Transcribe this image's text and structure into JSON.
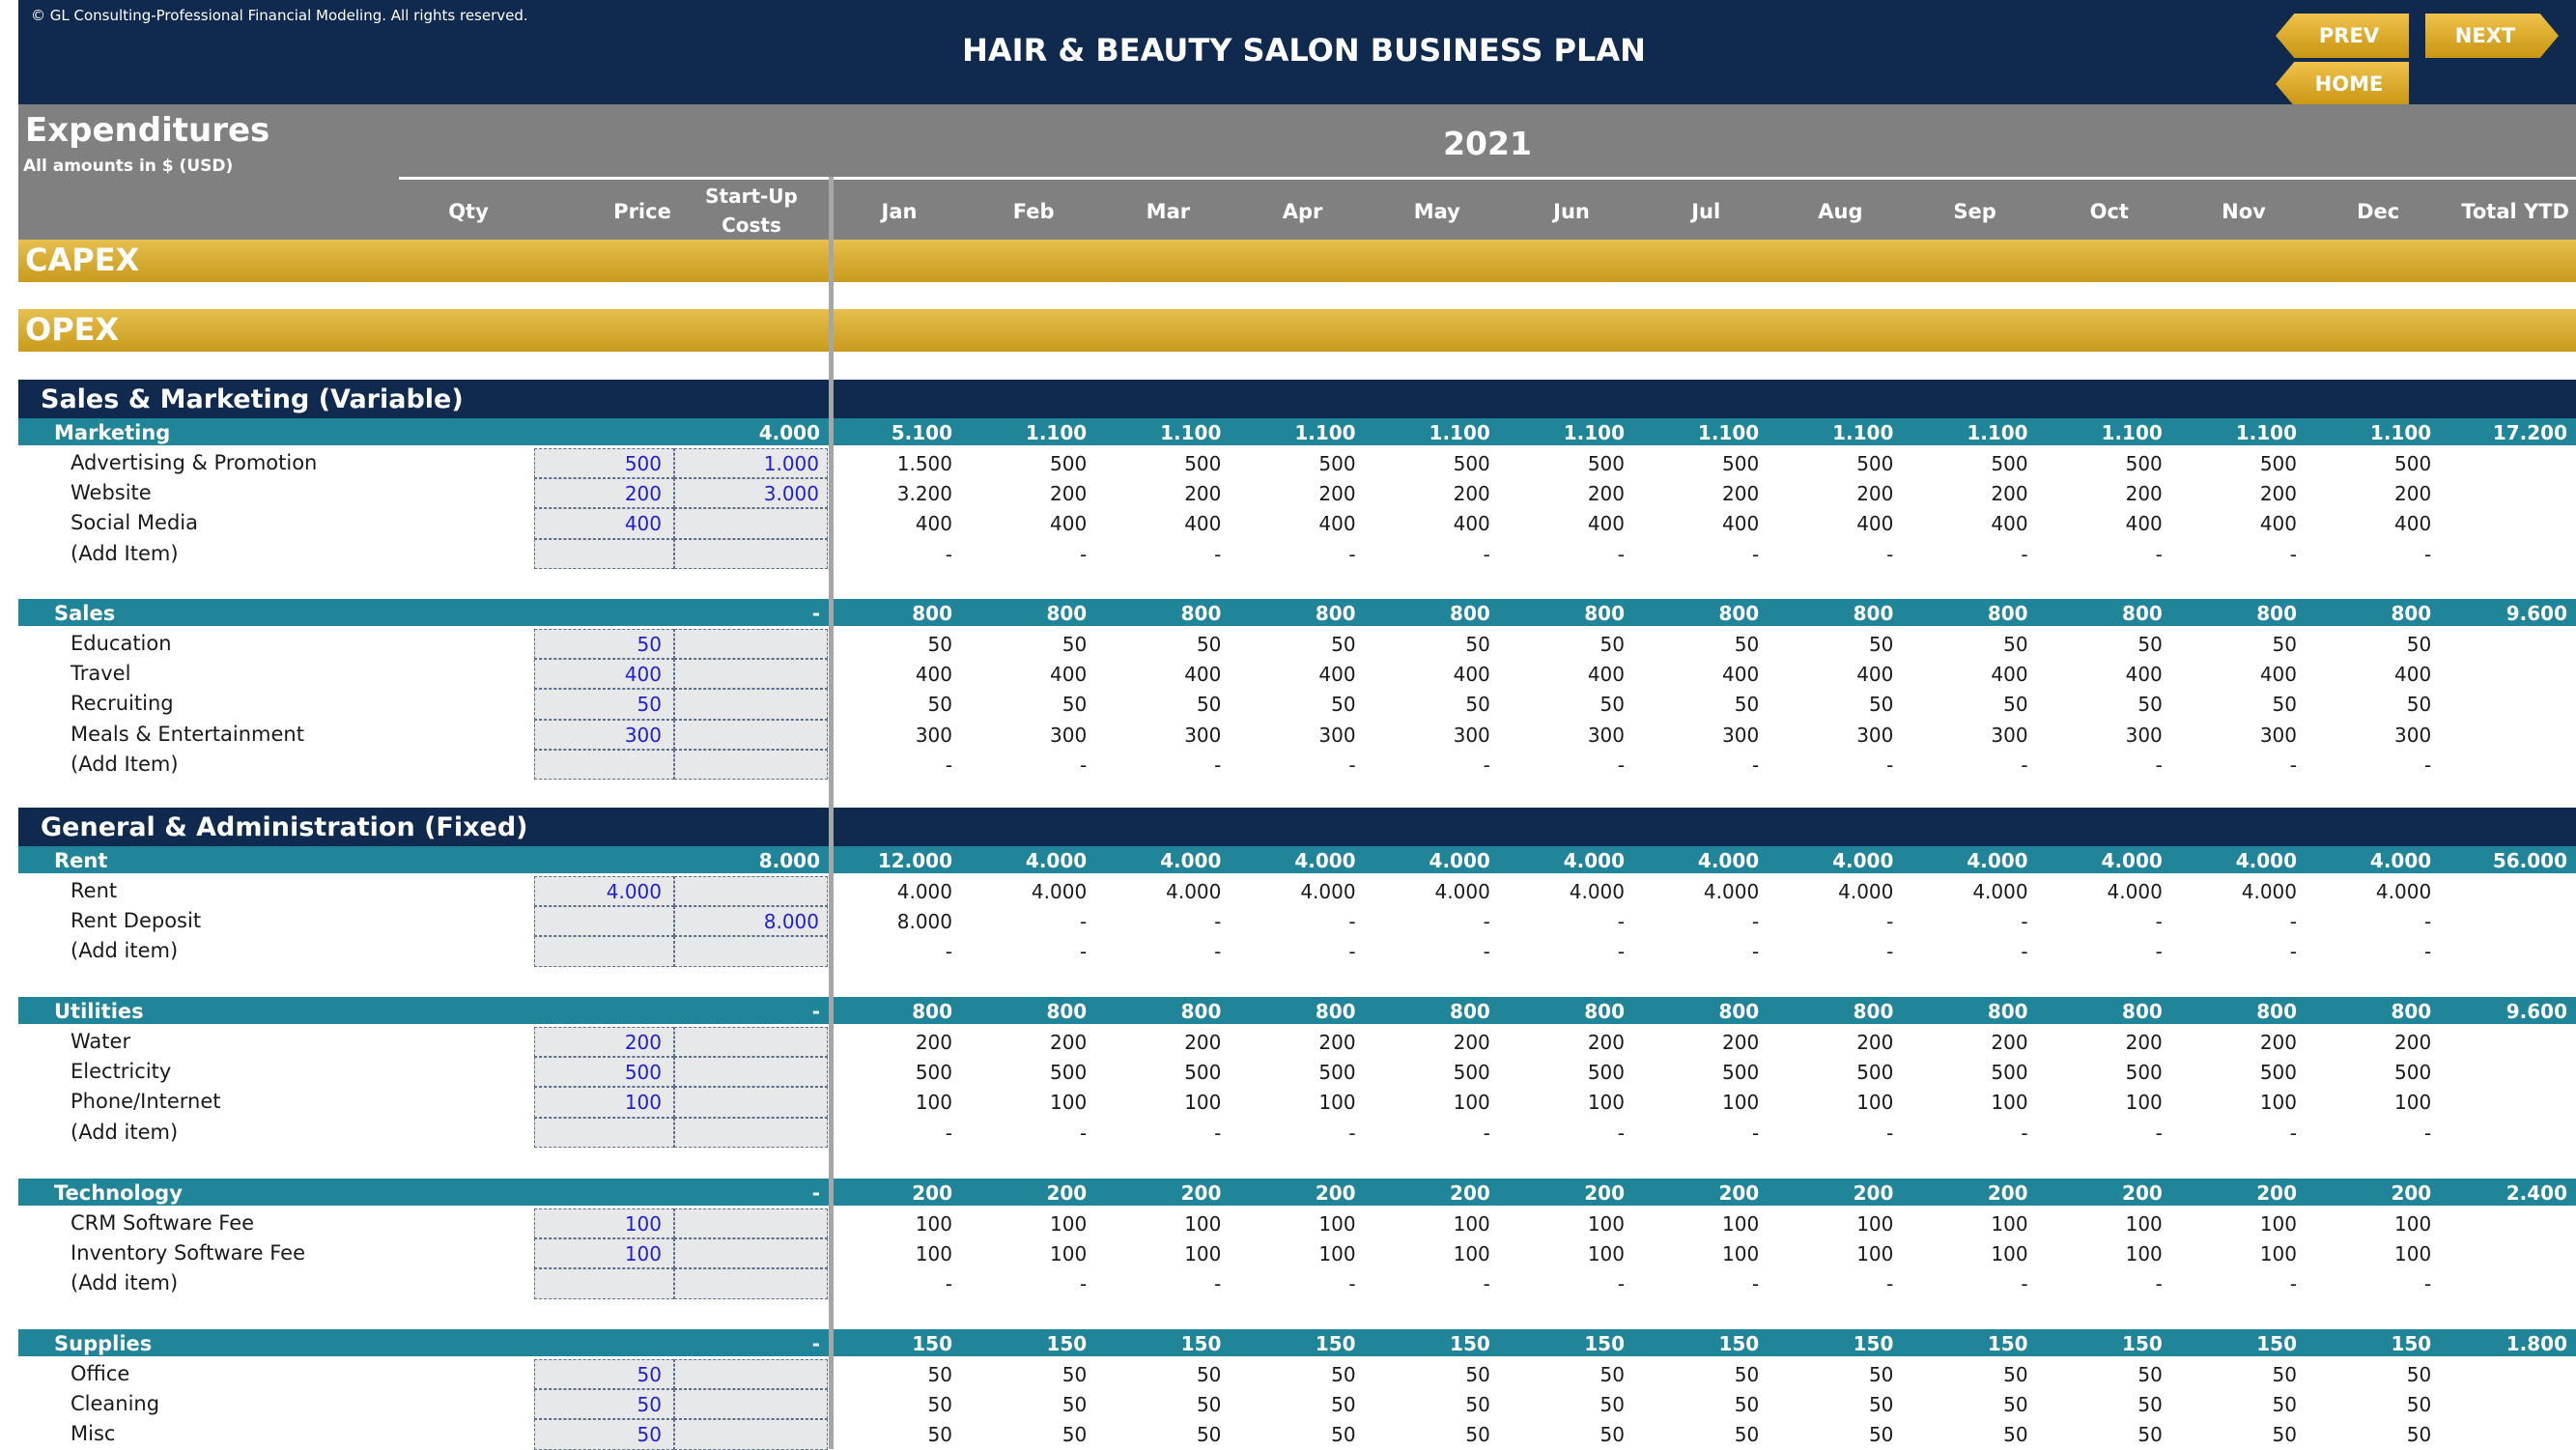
{
  "header": {
    "copyright": "© GL Consulting-Professional Financial Modeling. All rights reserved.",
    "title": "HAIR & BEAUTY SALON BUSINESS PLAN",
    "buttons": {
      "prev": "PREV",
      "next": "NEXT",
      "home": "HOME"
    }
  },
  "sheet": {
    "title": "Expenditures",
    "subtitle": "All amounts in $ (USD)",
    "year": "2021",
    "columns": {
      "qty": "Qty",
      "price": "Price",
      "startup_l1": "Start-Up",
      "startup_l2": "Costs",
      "months": [
        "Jan",
        "Feb",
        "Mar",
        "Apr",
        "May",
        "Jun",
        "Jul",
        "Aug",
        "Sep",
        "Oct",
        "Nov",
        "Dec"
      ],
      "total": "Total YTD"
    },
    "capex_label": "CAPEX",
    "opex_label": "OPEX"
  },
  "colors": {
    "navy": "#10294f",
    "teal": "#21859a",
    "gold": "#d8a92c",
    "grey": "#808080",
    "input_blue": "#1f1fd2"
  },
  "sections": [
    {
      "title": "Sales & Marketing (Variable)",
      "groups": [
        {
          "name": "Marketing",
          "startup": "4.000",
          "months": [
            "5.100",
            "1.100",
            "1.100",
            "1.100",
            "1.100",
            "1.100",
            "1.100",
            "1.100",
            "1.100",
            "1.100",
            "1.100",
            "1.100"
          ],
          "total": "17.200",
          "items": [
            {
              "label": "Advertising & Promotion",
              "price": "500",
              "startup": "1.000",
              "months": [
                "1.500",
                "500",
                "500",
                "500",
                "500",
                "500",
                "500",
                "500",
                "500",
                "500",
                "500",
                "500"
              ]
            },
            {
              "label": "Website",
              "price": "200",
              "startup": "3.000",
              "months": [
                "3.200",
                "200",
                "200",
                "200",
                "200",
                "200",
                "200",
                "200",
                "200",
                "200",
                "200",
                "200"
              ]
            },
            {
              "label": "Social Media",
              "price": "400",
              "startup": "",
              "months": [
                "400",
                "400",
                "400",
                "400",
                "400",
                "400",
                "400",
                "400",
                "400",
                "400",
                "400",
                "400"
              ]
            },
            {
              "label": "(Add Item)",
              "price": "",
              "startup": "",
              "months": [
                "-",
                "-",
                "-",
                "-",
                "-",
                "-",
                "-",
                "-",
                "-",
                "-",
                "-",
                "-"
              ]
            }
          ]
        },
        {
          "name": "Sales",
          "startup": "-",
          "months": [
            "800",
            "800",
            "800",
            "800",
            "800",
            "800",
            "800",
            "800",
            "800",
            "800",
            "800",
            "800"
          ],
          "total": "9.600",
          "items": [
            {
              "label": "Education",
              "price": "50",
              "startup": "",
              "months": [
                "50",
                "50",
                "50",
                "50",
                "50",
                "50",
                "50",
                "50",
                "50",
                "50",
                "50",
                "50"
              ]
            },
            {
              "label": "Travel",
              "price": "400",
              "startup": "",
              "months": [
                "400",
                "400",
                "400",
                "400",
                "400",
                "400",
                "400",
                "400",
                "400",
                "400",
                "400",
                "400"
              ]
            },
            {
              "label": "Recruiting",
              "price": "50",
              "startup": "",
              "months": [
                "50",
                "50",
                "50",
                "50",
                "50",
                "50",
                "50",
                "50",
                "50",
                "50",
                "50",
                "50"
              ]
            },
            {
              "label": "Meals & Entertainment",
              "price": "300",
              "startup": "",
              "months": [
                "300",
                "300",
                "300",
                "300",
                "300",
                "300",
                "300",
                "300",
                "300",
                "300",
                "300",
                "300"
              ]
            },
            {
              "label": "(Add Item)",
              "price": "",
              "startup": "",
              "months": [
                "-",
                "-",
                "-",
                "-",
                "-",
                "-",
                "-",
                "-",
                "-",
                "-",
                "-",
                "-"
              ]
            }
          ]
        }
      ]
    },
    {
      "title": "General & Administration (Fixed)",
      "groups": [
        {
          "name": "Rent",
          "startup": "8.000",
          "months": [
            "12.000",
            "4.000",
            "4.000",
            "4.000",
            "4.000",
            "4.000",
            "4.000",
            "4.000",
            "4.000",
            "4.000",
            "4.000",
            "4.000"
          ],
          "total": "56.000",
          "items": [
            {
              "label": "Rent",
              "price": "4.000",
              "startup": "",
              "months": [
                "4.000",
                "4.000",
                "4.000",
                "4.000",
                "4.000",
                "4.000",
                "4.000",
                "4.000",
                "4.000",
                "4.000",
                "4.000",
                "4.000"
              ]
            },
            {
              "label": "Rent Deposit",
              "price": "",
              "startup": "8.000",
              "months": [
                "8.000",
                "-",
                "-",
                "-",
                "-",
                "-",
                "-",
                "-",
                "-",
                "-",
                "-",
                "-"
              ]
            },
            {
              "label": "(Add item)",
              "price": "",
              "startup": "",
              "months": [
                "-",
                "-",
                "-",
                "-",
                "-",
                "-",
                "-",
                "-",
                "-",
                "-",
                "-",
                "-"
              ]
            }
          ]
        },
        {
          "name": "Utilities",
          "startup": "-",
          "months": [
            "800",
            "800",
            "800",
            "800",
            "800",
            "800",
            "800",
            "800",
            "800",
            "800",
            "800",
            "800"
          ],
          "total": "9.600",
          "items": [
            {
              "label": "Water",
              "price": "200",
              "startup": "",
              "months": [
                "200",
                "200",
                "200",
                "200",
                "200",
                "200",
                "200",
                "200",
                "200",
                "200",
                "200",
                "200"
              ]
            },
            {
              "label": "Electricity",
              "price": "500",
              "startup": "",
              "months": [
                "500",
                "500",
                "500",
                "500",
                "500",
                "500",
                "500",
                "500",
                "500",
                "500",
                "500",
                "500"
              ]
            },
            {
              "label": "Phone/Internet",
              "price": "100",
              "startup": "",
              "months": [
                "100",
                "100",
                "100",
                "100",
                "100",
                "100",
                "100",
                "100",
                "100",
                "100",
                "100",
                "100"
              ]
            },
            {
              "label": "(Add item)",
              "price": "",
              "startup": "",
              "months": [
                "-",
                "-",
                "-",
                "-",
                "-",
                "-",
                "-",
                "-",
                "-",
                "-",
                "-",
                "-"
              ]
            }
          ]
        },
        {
          "name": "Technology",
          "startup": "-",
          "months": [
            "200",
            "200",
            "200",
            "200",
            "200",
            "200",
            "200",
            "200",
            "200",
            "200",
            "200",
            "200"
          ],
          "total": "2.400",
          "items": [
            {
              "label": "CRM Software Fee",
              "price": "100",
              "startup": "",
              "months": [
                "100",
                "100",
                "100",
                "100",
                "100",
                "100",
                "100",
                "100",
                "100",
                "100",
                "100",
                "100"
              ]
            },
            {
              "label": "Inventory Software Fee",
              "price": "100",
              "startup": "",
              "months": [
                "100",
                "100",
                "100",
                "100",
                "100",
                "100",
                "100",
                "100",
                "100",
                "100",
                "100",
                "100"
              ]
            },
            {
              "label": "(Add item)",
              "price": "",
              "startup": "",
              "months": [
                "-",
                "-",
                "-",
                "-",
                "-",
                "-",
                "-",
                "-",
                "-",
                "-",
                "-",
                "-"
              ]
            }
          ]
        },
        {
          "name": "Supplies",
          "startup": "-",
          "months": [
            "150",
            "150",
            "150",
            "150",
            "150",
            "150",
            "150",
            "150",
            "150",
            "150",
            "150",
            "150"
          ],
          "total": "1.800",
          "items": [
            {
              "label": "Office",
              "price": "50",
              "startup": "",
              "months": [
                "50",
                "50",
                "50",
                "50",
                "50",
                "50",
                "50",
                "50",
                "50",
                "50",
                "50",
                "50"
              ]
            },
            {
              "label": "Cleaning",
              "price": "50",
              "startup": "",
              "months": [
                "50",
                "50",
                "50",
                "50",
                "50",
                "50",
                "50",
                "50",
                "50",
                "50",
                "50",
                "50"
              ]
            },
            {
              "label": "Misc",
              "price": "50",
              "startup": "",
              "months": [
                "50",
                "50",
                "50",
                "50",
                "50",
                "50",
                "50",
                "50",
                "50",
                "50",
                "50",
                "50"
              ]
            }
          ]
        }
      ]
    }
  ]
}
